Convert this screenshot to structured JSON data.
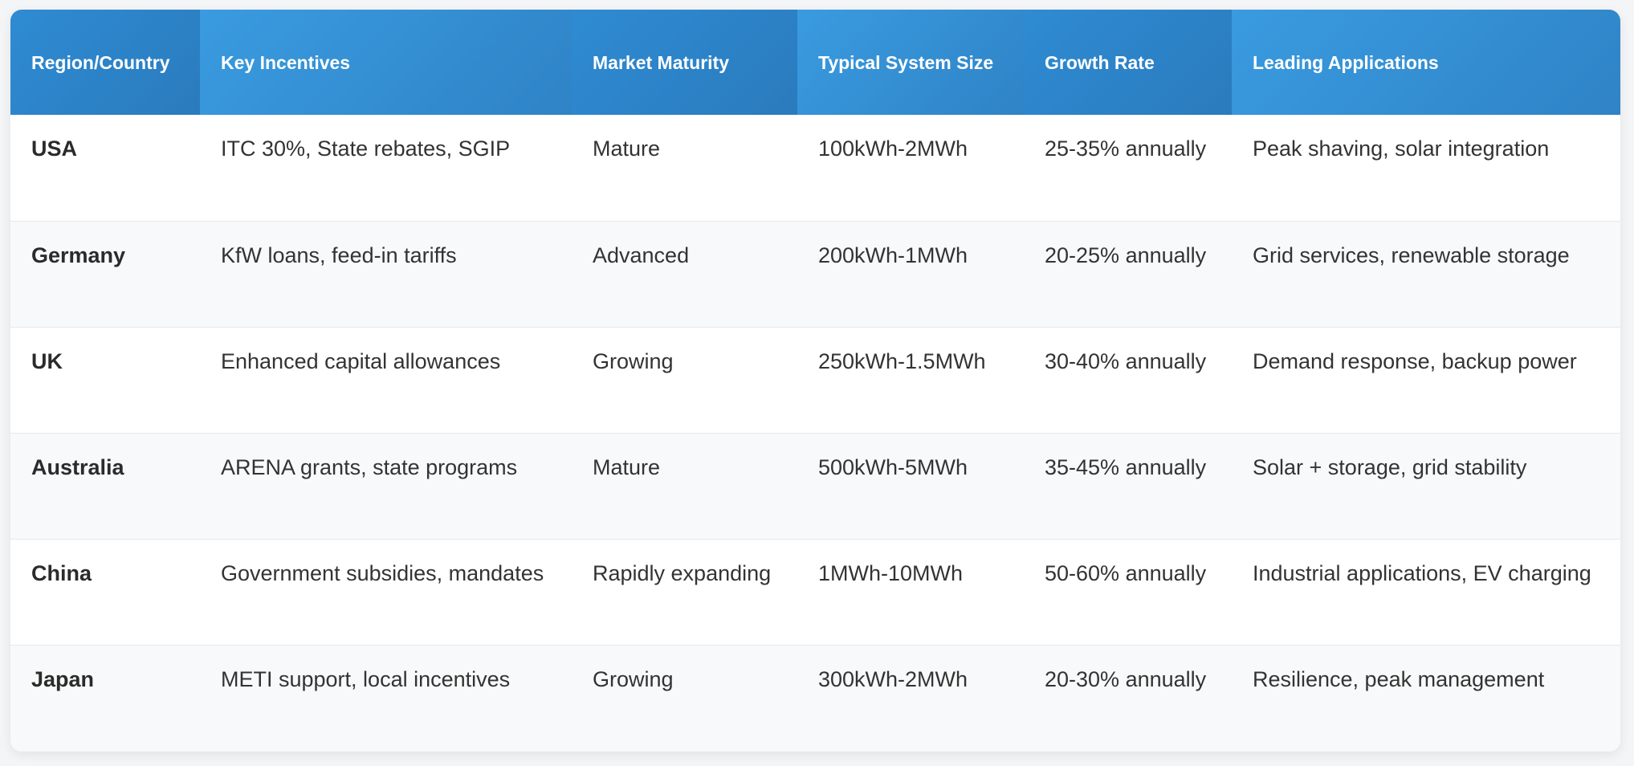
{
  "table": {
    "headers": [
      "Region/Country",
      "Key Incentives",
      "Market Maturity",
      "Typical System Size",
      "Growth Rate",
      "Leading Applications"
    ],
    "rows": [
      [
        "USA",
        "ITC 30%, State rebates, SGIP",
        "Mature",
        "100kWh-2MWh",
        "25-35% annually",
        "Peak shaving, solar integration"
      ],
      [
        "Germany",
        "KfW loans, feed-in tariffs",
        "Advanced",
        "200kWh-1MWh",
        "20-25% annually",
        "Grid services, renewable storage"
      ],
      [
        "UK",
        "Enhanced capital allowances",
        "Growing",
        "250kWh-1.5MWh",
        "30-40% annually",
        "Demand response, backup power"
      ],
      [
        "Australia",
        "ARENA grants, state programs",
        "Mature",
        "500kWh-5MWh",
        "35-45% annually",
        "Solar + storage, grid stability"
      ],
      [
        "China",
        "Government subsidies, mandates",
        "Rapidly expanding",
        "1MWh-10MWh",
        "50-60% annually",
        "Industrial applications, EV charging"
      ],
      [
        "Japan",
        "METI support, local incentives",
        "Growing",
        "300kWh-2MWh",
        "20-30% annually",
        "Resilience, peak management"
      ]
    ]
  },
  "colors": {
    "header_start": "#3a9be0",
    "header_end": "#2f83c6",
    "stripe": "#f8f9fa",
    "text": "#333333"
  }
}
